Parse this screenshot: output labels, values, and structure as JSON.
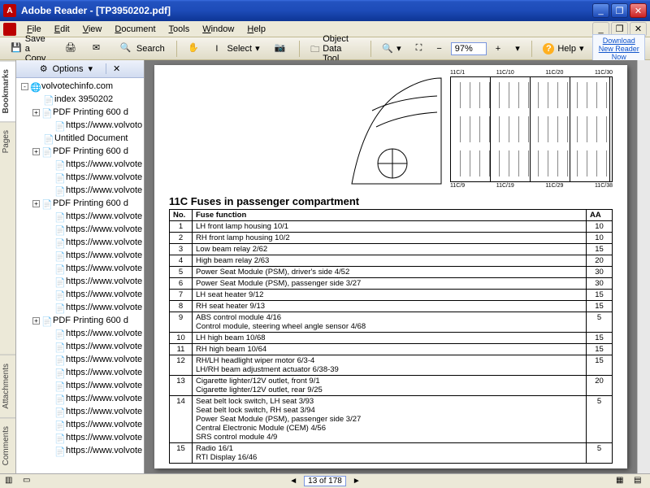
{
  "window": {
    "title": "Adobe Reader - [TP3950202.pdf]"
  },
  "menu": {
    "file": "File",
    "edit": "Edit",
    "view": "View",
    "document": "Document",
    "tools": "Tools",
    "window": "Window",
    "help": "Help"
  },
  "toolbar": {
    "save": "Save a Copy",
    "print_i": "🖨",
    "mail_i": "✉",
    "search": "Search",
    "hand_i": "✋",
    "select": "Select",
    "snap_i": "⬚",
    "odt": "Object Data Tool",
    "zoomout_i": "−",
    "zoomin_i": "+",
    "zoom_val": "97%",
    "help": "Help",
    "dl_line1": "Download New Reader",
    "dl_line2": "Now"
  },
  "vtabs": {
    "bookmarks": "Bookmarks",
    "pages": "Pages",
    "attachments": "Attachments",
    "comments": "Comments"
  },
  "side": {
    "options": "Options",
    "tree": [
      {
        "lvl": 1,
        "pm": "-",
        "ico": "🌐",
        "t": "volvotechinfo.com"
      },
      {
        "lvl": 2,
        "pm": "",
        "ico": "📄",
        "t": "index 3950202"
      },
      {
        "lvl": 2,
        "pm": "+",
        "ico": "📄",
        "t": "PDF Printing 600 d"
      },
      {
        "lvl": 3,
        "pm": "",
        "ico": "📄",
        "t": "https://www.volvoto"
      },
      {
        "lvl": 2,
        "pm": "",
        "ico": "📄",
        "t": "Untitled Document"
      },
      {
        "lvl": 2,
        "pm": "+",
        "ico": "📄",
        "t": "PDF Printing 600 d"
      },
      {
        "lvl": 3,
        "pm": "",
        "ico": "📄",
        "t": "https://www.volvotec"
      },
      {
        "lvl": 3,
        "pm": "",
        "ico": "📄",
        "t": "https://www.volvotec"
      },
      {
        "lvl": 3,
        "pm": "",
        "ico": "📄",
        "t": "https://www.volvotec"
      },
      {
        "lvl": 2,
        "pm": "+",
        "ico": "📄",
        "t": "PDF Printing 600 d"
      },
      {
        "lvl": 3,
        "pm": "",
        "ico": "📄",
        "t": "https://www.volvotec"
      },
      {
        "lvl": 3,
        "pm": "",
        "ico": "📄",
        "t": "https://www.volvotec"
      },
      {
        "lvl": 3,
        "pm": "",
        "ico": "📄",
        "t": "https://www.volvotec"
      },
      {
        "lvl": 3,
        "pm": "",
        "ico": "📄",
        "t": "https://www.volvotec"
      },
      {
        "lvl": 3,
        "pm": "",
        "ico": "📄",
        "t": "https://www.volvotec"
      },
      {
        "lvl": 3,
        "pm": "",
        "ico": "📄",
        "t": "https://www.volvotec"
      },
      {
        "lvl": 3,
        "pm": "",
        "ico": "📄",
        "t": "https://www.volvotec"
      },
      {
        "lvl": 3,
        "pm": "",
        "ico": "📄",
        "t": "https://www.volvotec"
      },
      {
        "lvl": 2,
        "pm": "+",
        "ico": "📄",
        "t": "PDF Printing 600 d"
      },
      {
        "lvl": 3,
        "pm": "",
        "ico": "📄",
        "t": "https://www.volvotec"
      },
      {
        "lvl": 3,
        "pm": "",
        "ico": "📄",
        "t": "https://www.volvotec"
      },
      {
        "lvl": 3,
        "pm": "",
        "ico": "📄",
        "t": "https://www.volvotec"
      },
      {
        "lvl": 3,
        "pm": "",
        "ico": "📄",
        "t": "https://www.volvotec"
      },
      {
        "lvl": 3,
        "pm": "",
        "ico": "📄",
        "t": "https://www.volvotec"
      },
      {
        "lvl": 3,
        "pm": "",
        "ico": "📄",
        "t": "https://www.volvotec"
      },
      {
        "lvl": 3,
        "pm": "",
        "ico": "📄",
        "t": "https://www.volvotec"
      },
      {
        "lvl": 3,
        "pm": "",
        "ico": "📄",
        "t": "https://www.volvotec"
      },
      {
        "lvl": 3,
        "pm": "",
        "ico": "📄",
        "t": "https://www.volvotec"
      },
      {
        "lvl": 3,
        "pm": "",
        "ico": "📄",
        "t": "https://www.volvotec"
      }
    ]
  },
  "pdf": {
    "section_title": "11C Fuses in passenger compartment",
    "diagram_labels_top": [
      "11C/1",
      "11C/10",
      "11C/20",
      "11C/30"
    ],
    "diagram_labels_bot": [
      "11C/9",
      "11C/19",
      "11C/29",
      "11C/38"
    ],
    "th_no": "No.",
    "th_fn": "Fuse function",
    "th_aa": "AA",
    "rows": [
      {
        "no": "1",
        "fn": "LH front lamp housing 10/1",
        "aa": "10"
      },
      {
        "no": "2",
        "fn": "RH front lamp housing 10/2",
        "aa": "10"
      },
      {
        "no": "3",
        "fn": "Low beam relay 2/62",
        "aa": "15"
      },
      {
        "no": "4",
        "fn": "High beam relay 2/63",
        "aa": "20"
      },
      {
        "no": "5",
        "fn": "Power Seat Module (PSM), driver's side 4/52",
        "aa": "30"
      },
      {
        "no": "6",
        "fn": "Power Seat Module (PSM), passenger side 3/27",
        "aa": "30"
      },
      {
        "no": "7",
        "fn": "LH seat heater 9/12",
        "aa": "15"
      },
      {
        "no": "8",
        "fn": "RH seat heater 9/13",
        "aa": "15"
      },
      {
        "no": "9",
        "fn": "ABS control module 4/16\nControl module, steering wheel angle sensor 4/68",
        "aa": "5"
      },
      {
        "no": "10",
        "fn": "LH high beam 10/68",
        "aa": "15"
      },
      {
        "no": "11",
        "fn": "RH high beam 10/64",
        "aa": "15"
      },
      {
        "no": "12",
        "fn": "RH/LH headlight wiper motor 6/3-4\nLH/RH beam adjustment actuator 6/38-39",
        "aa": "15"
      },
      {
        "no": "13",
        "fn": "Cigarette lighter/12V outlet, front 9/1\nCigarette lighter/12V outlet, rear 9/25",
        "aa": "20"
      },
      {
        "no": "14",
        "fn": "Seat belt lock switch, LH seat 3/93\nSeat belt lock switch, RH seat 3/94\nPower Seat Module (PSM), passenger side 3/27\nCentral Electronic Module (CEM) 4/56\nSRS control module 4/9",
        "aa": "5"
      },
      {
        "no": "15",
        "fn": "Radio 16/1\nRTI Display 16/46",
        "aa": "5"
      }
    ]
  },
  "status": {
    "page": "13 of 178"
  }
}
